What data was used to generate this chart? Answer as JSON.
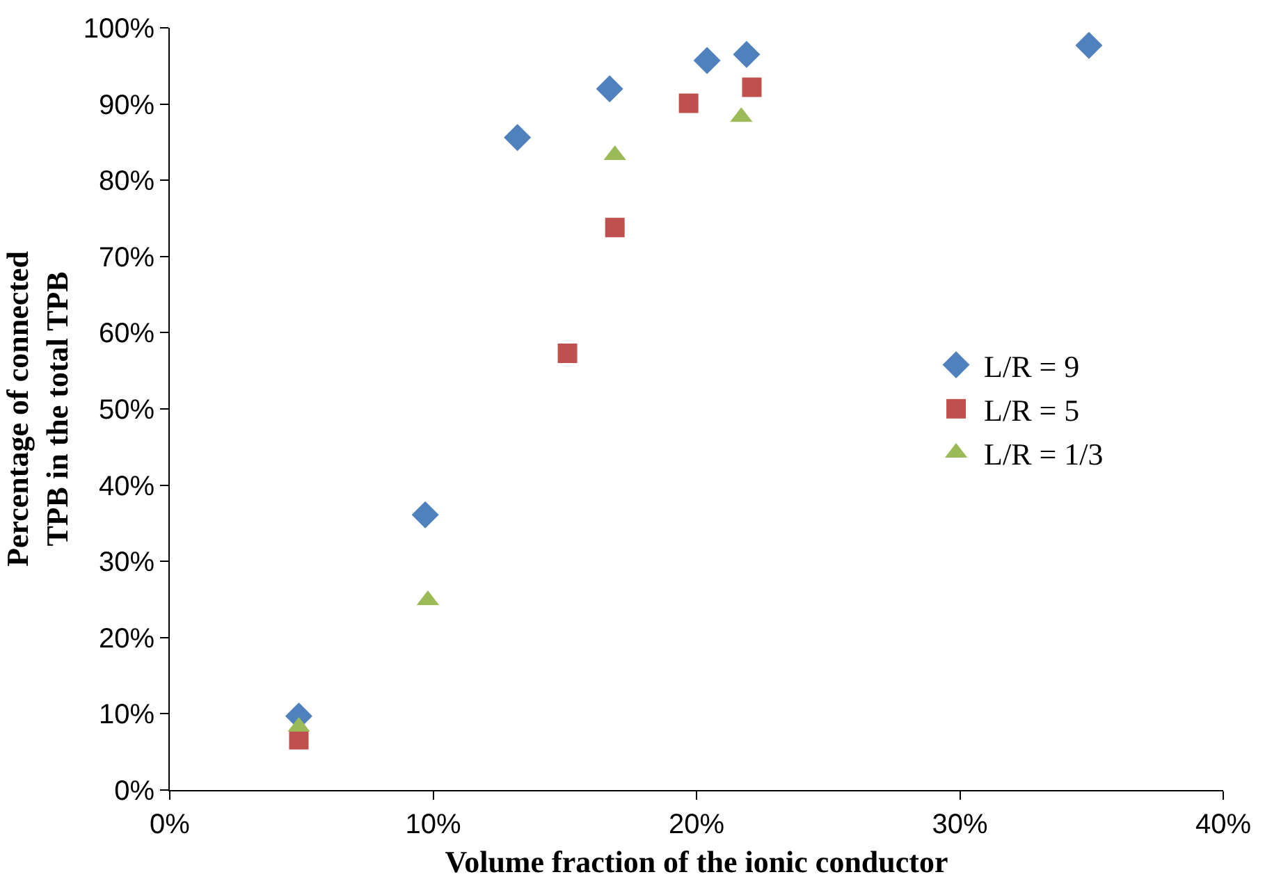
{
  "chart_data": {
    "type": "scatter",
    "xlabel": "Volume fraction of the ionic conductor",
    "ylabel": "Percentage of connected TPB in the total TPB",
    "xlim": [
      0,
      40
    ],
    "ylim": [
      0,
      100
    ],
    "xticks": [
      {
        "value": 0,
        "label": "0%"
      },
      {
        "value": 10,
        "label": "10%"
      },
      {
        "value": 20,
        "label": "20%"
      },
      {
        "value": 30,
        "label": "30%"
      },
      {
        "value": 40,
        "label": "40%"
      }
    ],
    "yticks": [
      {
        "value": 0,
        "label": "0%"
      },
      {
        "value": 10,
        "label": "10%"
      },
      {
        "value": 20,
        "label": "20%"
      },
      {
        "value": 30,
        "label": "30%"
      },
      {
        "value": 40,
        "label": "40%"
      },
      {
        "value": 50,
        "label": "50%"
      },
      {
        "value": 60,
        "label": "60%"
      },
      {
        "value": 70,
        "label": "70%"
      },
      {
        "value": 80,
        "label": "80%"
      },
      {
        "value": 90,
        "label": "90%"
      },
      {
        "value": 100,
        "label": "100%"
      }
    ],
    "legend": "right",
    "series": [
      {
        "name": "L/R = 9",
        "color": "#4f81bd",
        "marker": "diamond",
        "x": [
          4.9,
          9.7,
          13.2,
          16.7,
          20.4,
          21.9,
          34.9
        ],
        "values": [
          9.7,
          36.1,
          85.6,
          92.0,
          95.7,
          96.5,
          97.7
        ]
      },
      {
        "name": "L/R = 5",
        "color": "#c0504d",
        "marker": "square",
        "x": [
          4.9,
          15.1,
          16.9,
          19.7,
          22.1
        ],
        "values": [
          6.6,
          57.3,
          73.8,
          90.1,
          92.2
        ]
      },
      {
        "name": "L/R = 1/3",
        "color": "#9bbb59",
        "marker": "triangle",
        "x": [
          4.9,
          9.8,
          16.9,
          21.7
        ],
        "values": [
          8.3,
          24.9,
          83.3,
          88.3
        ]
      }
    ]
  }
}
